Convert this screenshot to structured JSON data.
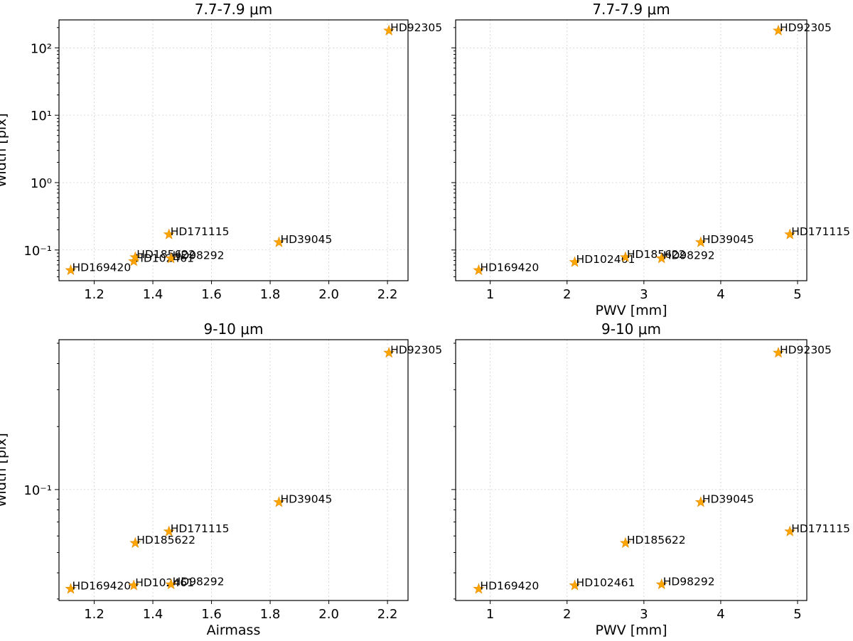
{
  "colors": {
    "marker": "#ffa500",
    "marker_edge": "#e08a00",
    "grid": "#cfcfcf"
  },
  "chart_data": [
    {
      "type": "scatter",
      "yscale": "log",
      "title": "7.7-7.9 μm",
      "xlabel": "",
      "ylabel": "Width [pix]",
      "xlim": [
        1.08,
        2.27
      ],
      "ylim": [
        0.035,
        260
      ],
      "xticks": [
        1.2,
        1.4,
        1.6,
        1.8,
        2.0,
        2.2
      ],
      "xtick_labels": [
        "1.2",
        "1.4",
        "1.6",
        "1.8",
        "2.0",
        "2.2"
      ],
      "yticks": [
        0.1,
        1,
        10,
        100
      ],
      "ytick_labels": [
        "10⁻¹",
        "10⁰",
        "10¹",
        "10²"
      ],
      "grid": true,
      "points": [
        {
          "label": "HD169420",
          "x": 1.12,
          "y": 0.05
        },
        {
          "label": "HD102461",
          "x": 1.335,
          "y": 0.068
        },
        {
          "label": "HD185622",
          "x": 1.34,
          "y": 0.078
        },
        {
          "label": "HD98292",
          "x": 1.462,
          "y": 0.075
        },
        {
          "label": "HD171115",
          "x": 1.455,
          "y": 0.17
        },
        {
          "label": "HD39045",
          "x": 1.83,
          "y": 0.13
        },
        {
          "label": "HD92305",
          "x": 2.205,
          "y": 180
        }
      ]
    },
    {
      "type": "scatter",
      "yscale": "log",
      "title": "7.7-7.9 μm",
      "xlabel": "PWV [mm]",
      "ylabel": "",
      "xlim": [
        0.55,
        5.12
      ],
      "ylim": [
        0.035,
        260
      ],
      "xticks": [
        1,
        2,
        3,
        4,
        5
      ],
      "xtick_labels": [
        "1",
        "2",
        "3",
        "4",
        "5"
      ],
      "yticks": [
        0.1,
        1,
        10,
        100
      ],
      "ytick_labels": [],
      "grid": true,
      "points": [
        {
          "label": "HD169420",
          "x": 0.85,
          "y": 0.05
        },
        {
          "label": "HD102461",
          "x": 2.1,
          "y": 0.066
        },
        {
          "label": "HD185622",
          "x": 2.76,
          "y": 0.078
        },
        {
          "label": "HD98292",
          "x": 3.23,
          "y": 0.075
        },
        {
          "label": "HD39045",
          "x": 3.74,
          "y": 0.13
        },
        {
          "label": "HD92305",
          "x": 4.75,
          "y": 180
        },
        {
          "label": "HD171115",
          "x": 4.9,
          "y": 0.17
        }
      ]
    },
    {
      "type": "scatter",
      "yscale": "log",
      "title": "9-10 μm",
      "xlabel": "Airmass",
      "ylabel": "Width [pix]",
      "xlim": [
        1.08,
        2.27
      ],
      "ylim": [
        0.0295,
        0.52
      ],
      "xticks": [
        1.2,
        1.4,
        1.6,
        1.8,
        2.0,
        2.2
      ],
      "xtick_labels": [
        "1.2",
        "1.4",
        "1.6",
        "1.8",
        "2.0",
        "2.2"
      ],
      "yticks": [
        0.1
      ],
      "ytick_labels": [
        "10⁻¹"
      ],
      "grid": true,
      "points": [
        {
          "label": "HD169420",
          "x": 1.12,
          "y": 0.0335
        },
        {
          "label": "HD102461",
          "x": 1.335,
          "y": 0.0348
        },
        {
          "label": "HD98292",
          "x": 1.462,
          "y": 0.0352
        },
        {
          "label": "HD185622",
          "x": 1.34,
          "y": 0.0555
        },
        {
          "label": "HD171115",
          "x": 1.455,
          "y": 0.063
        },
        {
          "label": "HD39045",
          "x": 1.83,
          "y": 0.087
        },
        {
          "label": "HD92305",
          "x": 2.205,
          "y": 0.45
        }
      ]
    },
    {
      "type": "scatter",
      "yscale": "log",
      "title": "9-10 μm",
      "xlabel": "PWV [mm]",
      "ylabel": "",
      "xlim": [
        0.55,
        5.12
      ],
      "ylim": [
        0.0295,
        0.52
      ],
      "xticks": [
        1,
        2,
        3,
        4,
        5
      ],
      "xtick_labels": [
        "1",
        "2",
        "3",
        "4",
        "5"
      ],
      "yticks": [
        0.1
      ],
      "ytick_labels": [],
      "grid": true,
      "points": [
        {
          "label": "HD169420",
          "x": 0.85,
          "y": 0.0335
        },
        {
          "label": "HD102461",
          "x": 2.1,
          "y": 0.0348
        },
        {
          "label": "HD98292",
          "x": 3.23,
          "y": 0.0352
        },
        {
          "label": "HD185622",
          "x": 2.76,
          "y": 0.0555
        },
        {
          "label": "HD39045",
          "x": 3.74,
          "y": 0.087
        },
        {
          "label": "HD171115",
          "x": 4.9,
          "y": 0.063
        },
        {
          "label": "HD92305",
          "x": 4.75,
          "y": 0.45
        }
      ]
    }
  ]
}
